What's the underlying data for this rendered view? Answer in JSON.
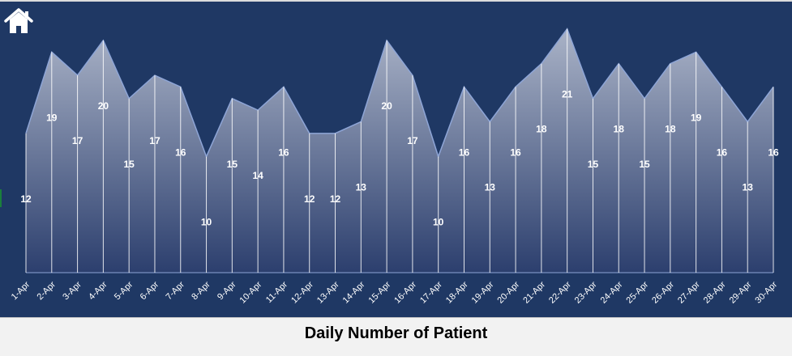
{
  "toolbar": {
    "home_icon": "home-icon"
  },
  "caption": "Daily Number of Patient",
  "colors": {
    "background": "#1f3864",
    "area_top": "#aab3c7",
    "area_bottom": "#2c3f6e",
    "outline": "#8ea5d6",
    "labels": "#ffffff"
  },
  "chart_data": {
    "type": "area",
    "title": "Daily Number of Patient",
    "categories": [
      "1-Apr",
      "2-Apr",
      "3-Apr",
      "4-Apr",
      "5-Apr",
      "6-Apr",
      "7-Apr",
      "8-Apr",
      "9-Apr",
      "10-Apr",
      "11-Apr",
      "12-Apr",
      "13-Apr",
      "14-Apr",
      "15-Apr",
      "16-Apr",
      "17-Apr",
      "18-Apr",
      "19-Apr",
      "20-Apr",
      "21-Apr",
      "22-Apr",
      "23-Apr",
      "24-Apr",
      "25-Apr",
      "26-Apr",
      "27-Apr",
      "28-Apr",
      "29-Apr",
      "30-Apr"
    ],
    "values": [
      12,
      19,
      17,
      20,
      15,
      17,
      16,
      10,
      15,
      14,
      16,
      12,
      12,
      13,
      20,
      17,
      10,
      16,
      13,
      16,
      18,
      21,
      15,
      18,
      15,
      18,
      19,
      16,
      13,
      16
    ],
    "ylim": [
      0,
      23
    ],
    "grid": false,
    "legend": "none",
    "data_labels": true
  }
}
